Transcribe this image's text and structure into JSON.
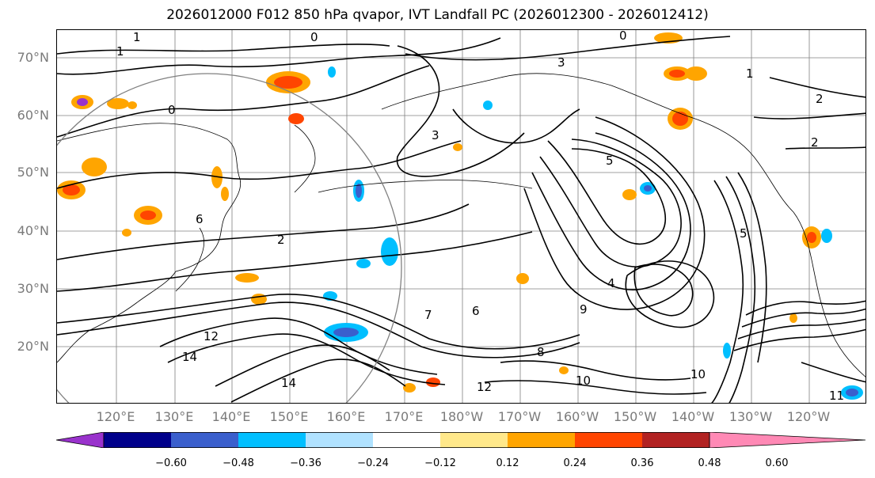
{
  "title": "2026012000 F012 850 hPa qvapor, IVT Landfall PC (2026012300 - 2026012412)",
  "map": {
    "lat_labels": [
      "70°N",
      "60°N",
      "50°N",
      "40°N",
      "30°N",
      "20°N"
    ],
    "lon_labels": [
      "120°E",
      "130°E",
      "140°E",
      "150°E",
      "160°E",
      "170°E",
      "180°W",
      "170°W",
      "160°W",
      "150°W",
      "140°W",
      "130°W",
      "120°W"
    ],
    "contour_labels": [
      "0",
      "1",
      "1",
      "0",
      "0",
      "1",
      "2",
      "2",
      "2",
      "3",
      "3",
      "4",
      "5",
      "5",
      "6",
      "6",
      "7",
      "8",
      "9",
      "10",
      "10",
      "11",
      "12",
      "12",
      "14",
      "14"
    ],
    "colors": {
      "contour": "#000000",
      "grid": "#808080",
      "coast": "#000000"
    }
  },
  "colorbar": {
    "ticks": [
      "−0.60",
      "−0.48",
      "−0.36",
      "−0.24",
      "−0.12",
      "0.12",
      "0.24",
      "0.36",
      "0.48",
      "0.60"
    ],
    "colors": [
      "#9932cc",
      "#00008b",
      "#3a5fcd",
      "#00bfff",
      "#b0e2ff",
      "#ffffff",
      "#ffe88a",
      "#ffa500",
      "#ff4500",
      "#b22222",
      "#ff89b5"
    ]
  }
}
